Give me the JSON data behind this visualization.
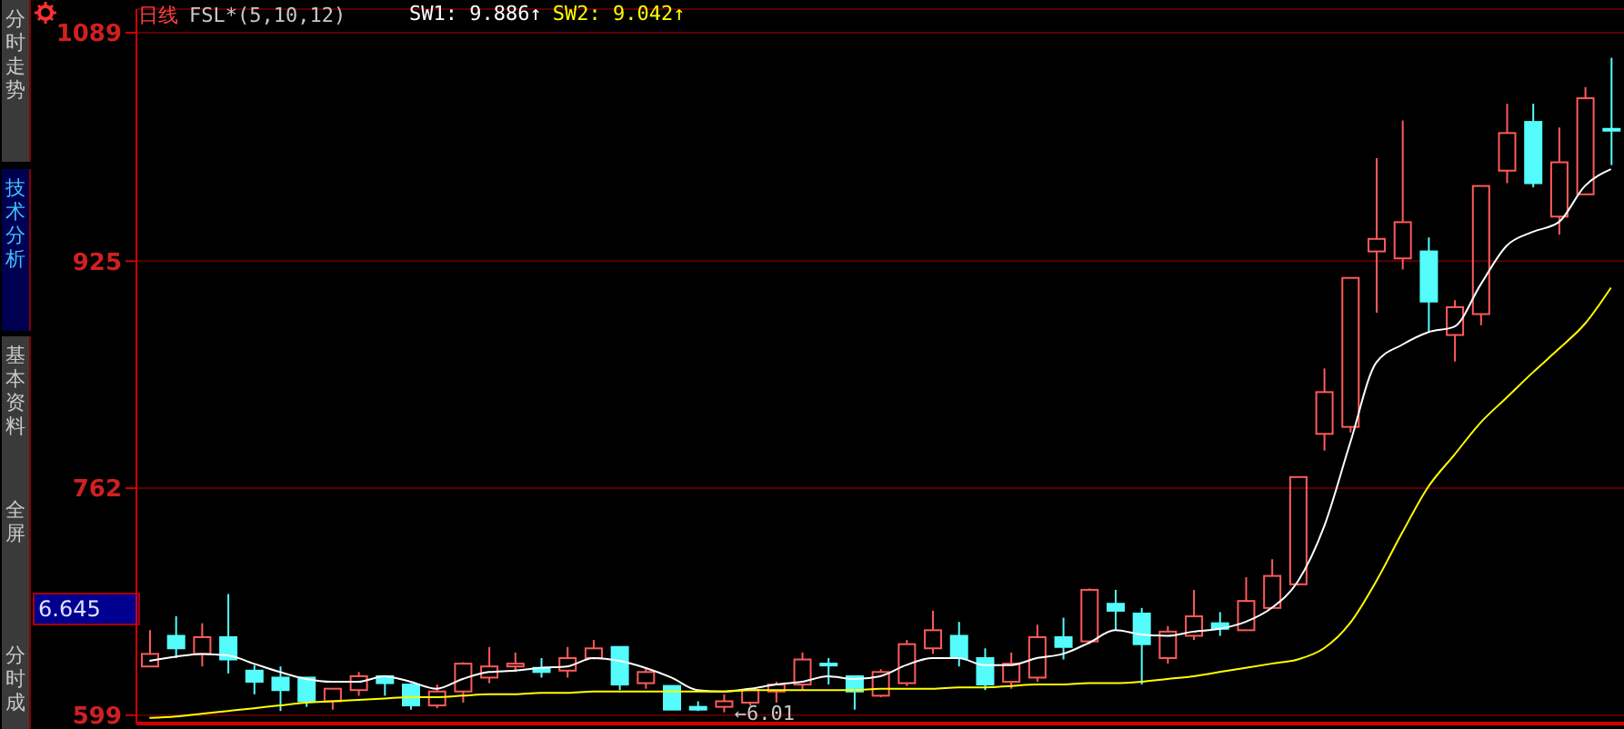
{
  "chart_data": {
    "type": "candlestick",
    "title": "日线",
    "subtitle": "FSL*(5,10,12)",
    "categories": [
      null,
      null,
      null,
      null,
      null,
      null,
      null,
      null,
      null,
      null,
      null,
      null,
      null,
      null,
      null,
      null,
      null,
      null,
      null,
      null,
      null,
      null,
      null,
      null,
      null,
      null,
      null,
      null,
      null,
      null,
      null,
      null,
      null,
      null,
      null,
      null,
      null,
      null,
      null,
      null,
      null,
      null,
      null,
      null,
      null,
      null,
      null,
      null,
      null,
      null,
      null,
      null,
      null,
      null,
      null,
      null,
      null
    ],
    "ohlc": [
      [
        634,
        660,
        634,
        643
      ],
      [
        656,
        670,
        640,
        647
      ],
      [
        643,
        665,
        634,
        655
      ],
      [
        655,
        686,
        629,
        639
      ],
      [
        631,
        635,
        614,
        623
      ],
      [
        626,
        634,
        602,
        617
      ],
      [
        626,
        626,
        605,
        609
      ],
      [
        609,
        618,
        603,
        618
      ],
      [
        617,
        630,
        613,
        627
      ],
      [
        627,
        627,
        613,
        622
      ],
      [
        621,
        622,
        603,
        606
      ],
      [
        606,
        621,
        604,
        616
      ],
      [
        616,
        637,
        608,
        636
      ],
      [
        626,
        648,
        622,
        634
      ],
      [
        634,
        644,
        630,
        636
      ],
      [
        633,
        640,
        626,
        630
      ],
      [
        631,
        648,
        626,
        640
      ],
      [
        640,
        653,
        639,
        647
      ],
      [
        648,
        648,
        617,
        621
      ],
      [
        622,
        633,
        618,
        630
      ],
      [
        620,
        620,
        603,
        603
      ],
      [
        605,
        609,
        602,
        603
      ],
      [
        605,
        614,
        601,
        609
      ],
      [
        608,
        618,
        606,
        617
      ],
      [
        616,
        623,
        608,
        621
      ],
      [
        621,
        644,
        617,
        639
      ],
      [
        636,
        640,
        621,
        635
      ],
      [
        627,
        627,
        603,
        616
      ],
      [
        613,
        632,
        612,
        630
      ],
      [
        622,
        653,
        620,
        650
      ],
      [
        647,
        674,
        643,
        660
      ],
      [
        656,
        666,
        634,
        640
      ],
      [
        640,
        647,
        617,
        621
      ],
      [
        623,
        644,
        618,
        636
      ],
      [
        626,
        664,
        623,
        655
      ],
      [
        655,
        669,
        639,
        648
      ],
      [
        652,
        690,
        650,
        689
      ],
      [
        679,
        689,
        660,
        674
      ],
      [
        672,
        676,
        621,
        650
      ],
      [
        640,
        663,
        636,
        659
      ],
      [
        656,
        689,
        653,
        670
      ],
      [
        665,
        673,
        656,
        661
      ],
      [
        660,
        698,
        660,
        681
      ],
      [
        676,
        711,
        676,
        699
      ],
      [
        693,
        770,
        692,
        770
      ],
      [
        801,
        848,
        789,
        831
      ],
      [
        806,
        913,
        802,
        913
      ],
      [
        932,
        999,
        888,
        941
      ],
      [
        927,
        1026,
        919,
        953
      ],
      [
        932,
        942,
        874,
        896
      ],
      [
        872,
        897,
        853,
        892
      ],
      [
        887,
        979,
        879,
        979
      ],
      [
        990,
        1038,
        981,
        1017
      ],
      [
        1025,
        1038,
        978,
        981
      ],
      [
        957,
        1021,
        944,
        996
      ],
      [
        973,
        1050,
        973,
        1042
      ],
      [
        1020,
        1071,
        994,
        1019
      ]
    ],
    "colors": [
      "#ff5a5a",
      "#54fcfc",
      "#ff5a5a",
      "#54fcfc",
      "#54fcfc",
      "#54fcfc",
      "#54fcfc",
      "#ff5a5a",
      "#ff5a5a",
      "#54fcfc",
      "#54fcfc",
      "#ff5a5a",
      "#ff5a5a",
      "#ff5a5a",
      "#ff5a5a",
      "#54fcfc",
      "#ff5a5a",
      "#ff5a5a",
      "#54fcfc",
      "#ff5a5a",
      "#54fcfc",
      "#54fcfc",
      "#ff5a5a",
      "#ff5a5a",
      "#ff5a5a",
      "#ff5a5a",
      "#54fcfc",
      "#54fcfc",
      "#ff5a5a",
      "#ff5a5a",
      "#ff5a5a",
      "#54fcfc",
      "#54fcfc",
      "#ff5a5a",
      "#ff5a5a",
      "#54fcfc",
      "#ff5a5a",
      "#54fcfc",
      "#54fcfc",
      "#ff5a5a",
      "#ff5a5a",
      "#54fcfc",
      "#ff5a5a",
      "#ff5a5a",
      "#ff5a5a",
      "#ff5a5a",
      "#ff5a5a",
      "#ff5a5a",
      "#ff5a5a",
      "#54fcfc",
      "#ff5a5a",
      "#ff5a5a",
      "#ff5a5a",
      "#54fcfc",
      "#ff5a5a",
      "#ff5a5a",
      "#54fcfc"
    ],
    "series": [
      {
        "name": "SW1: 9.886↑",
        "type": "line",
        "color": "#ffffff",
        "values": [
          638,
          641,
          643,
          642,
          636,
          630,
          625,
          623,
          623,
          627,
          623,
          618,
          625,
          630,
          631,
          633,
          634,
          640,
          638,
          633,
          626,
          617,
          616,
          618,
          621,
          623,
          627,
          625,
          627,
          635,
          640,
          640,
          635,
          635,
          640,
          643,
          651,
          660,
          657,
          656,
          659,
          661,
          666,
          676,
          695,
          734,
          794,
          852,
          865,
          874,
          878,
          908,
          936,
          946,
          953,
          979,
          991
        ]
      },
      {
        "name": "SW2: 9.042↑",
        "type": "line",
        "color": "#ffff00",
        "values": [
          597,
          598,
          600,
          602,
          604,
          606,
          608,
          609,
          610,
          611,
          612,
          612,
          613,
          614,
          614,
          615,
          615,
          616,
          616,
          616,
          616,
          616,
          616,
          617,
          617,
          617,
          617,
          617,
          618,
          618,
          618,
          619,
          619,
          620,
          621,
          621,
          622,
          622,
          623,
          625,
          627,
          630,
          633,
          636,
          639,
          647,
          665,
          695,
          730,
          763,
          786,
          809,
          827,
          845,
          862,
          880,
          906
        ]
      }
    ],
    "ylim": [
      593,
      1106
    ],
    "yticks": [
      599,
      762,
      925,
      1089
    ],
    "grid": "y",
    "tick_labels": "y",
    "legend": "top left",
    "annotations": [
      "分时走势",
      "技术分析",
      "基本资料",
      "全屏",
      "分时成",
      "6.645",
      "←6.01"
    ]
  }
}
